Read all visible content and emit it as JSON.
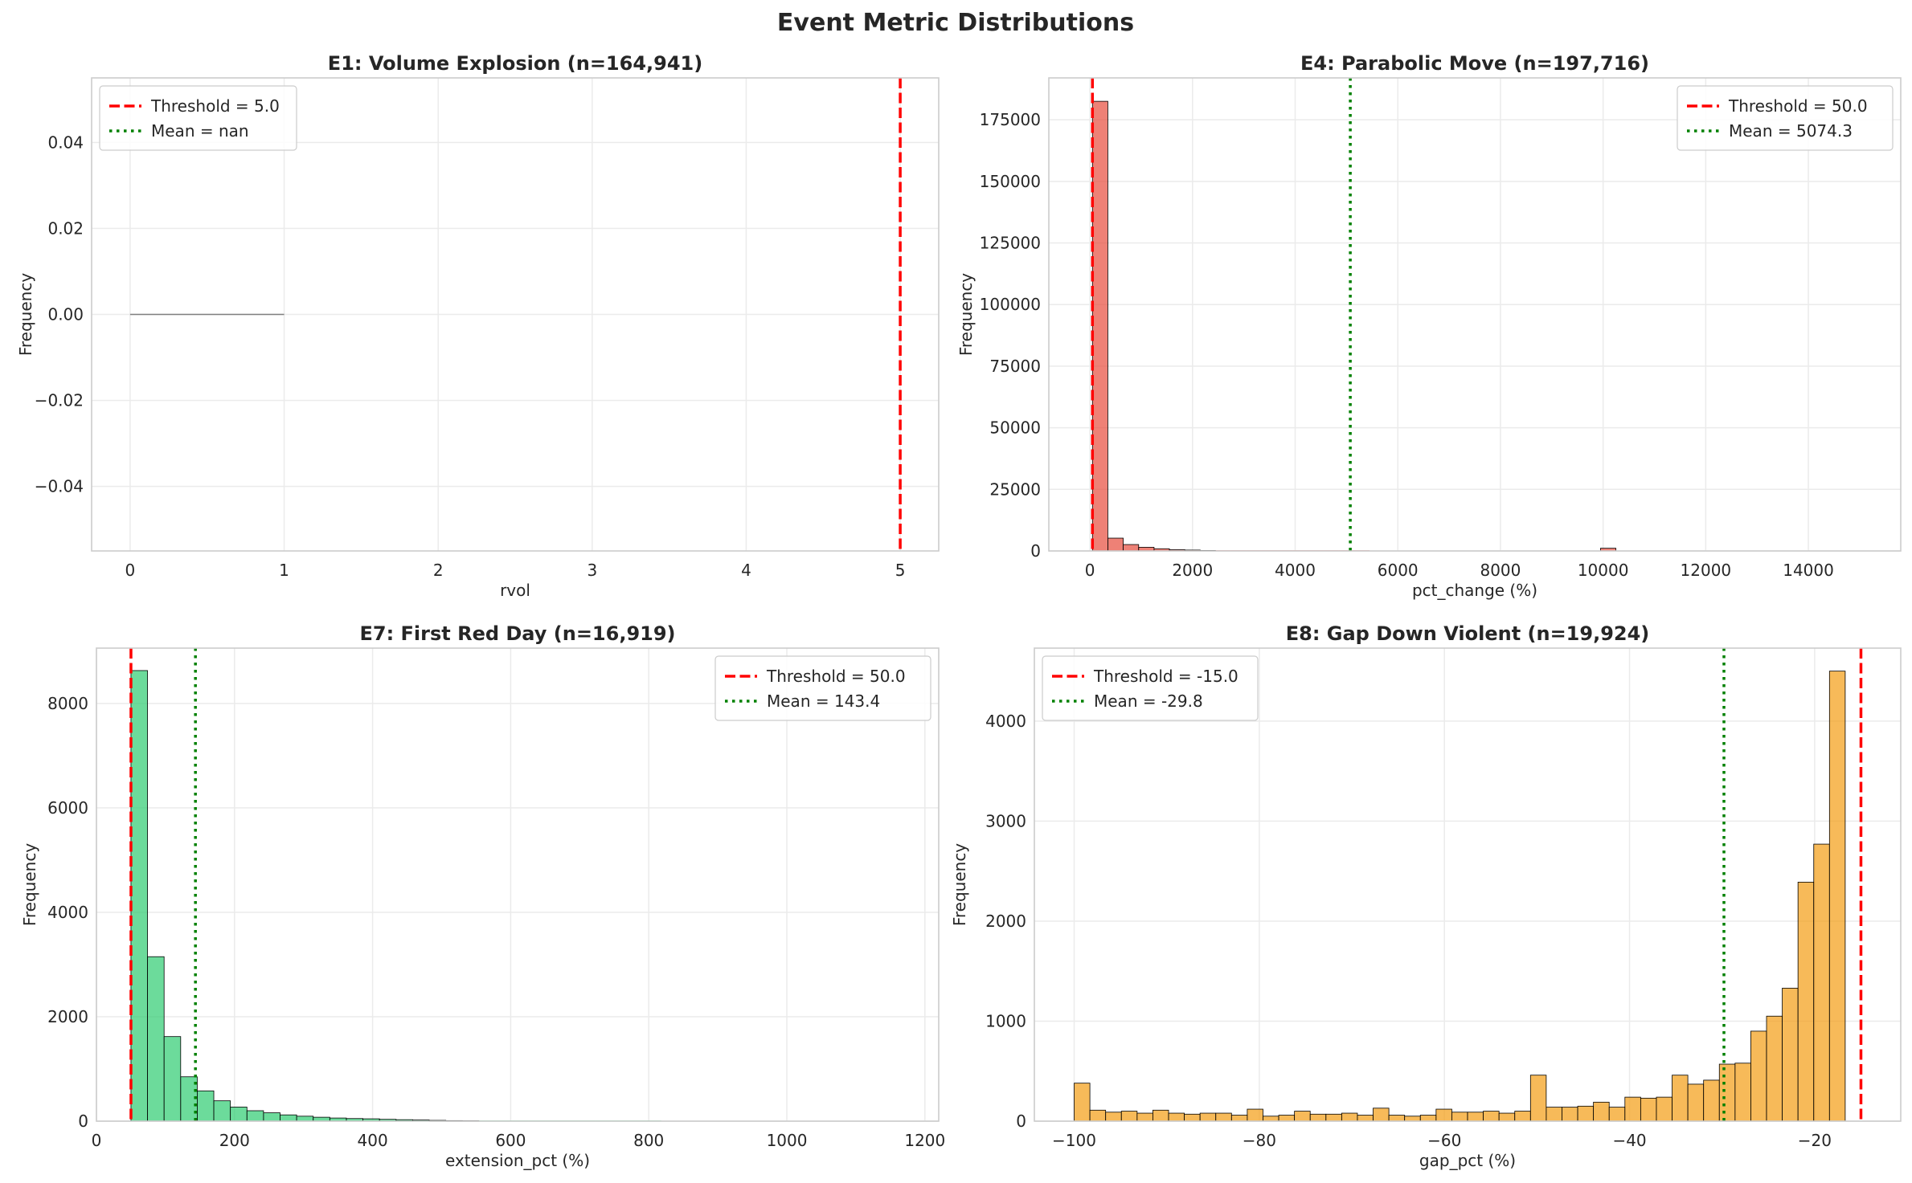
{
  "suptitle": "Event Metric Distributions",
  "chart_data": [
    {
      "id": "e1",
      "type": "bar",
      "title": "E1: Volume Explosion (n=164,941)",
      "xlabel": "rvol",
      "ylabel": "Frequency",
      "xlim": [
        -0.25,
        5.25
      ],
      "ylim": [
        -0.055,
        0.055
      ],
      "xticks": [
        0,
        1,
        2,
        3,
        4,
        5
      ],
      "xtick_labels": [
        "0",
        "1",
        "2",
        "3",
        "4",
        "5"
      ],
      "yticks": [
        -0.04,
        -0.02,
        0.0,
        0.02,
        0.04
      ],
      "ytick_labels": [
        "−0.04",
        "−0.02",
        "0.00",
        "0.02",
        "0.04"
      ],
      "bar_color": "#7f7f7f",
      "bins": [
        {
          "x0": 0,
          "x1": 1,
          "y": 0
        }
      ],
      "threshold": {
        "value": 5.0,
        "label": "Threshold = 5.0",
        "color": "#ff0000"
      },
      "mean": {
        "value": null,
        "label": "Mean = nan",
        "color": "#008000"
      },
      "legend_loc": "top-left",
      "grid": true
    },
    {
      "id": "e4",
      "type": "bar",
      "title": "E4: Parabolic Move (n=197,716)",
      "xlabel": "pct_change (%)",
      "ylabel": "Frequency",
      "xlim": [
        -800,
        15800
      ],
      "ylim": [
        0,
        192000
      ],
      "xticks": [
        0,
        2000,
        4000,
        6000,
        8000,
        10000,
        12000,
        14000
      ],
      "xtick_labels": [
        "0",
        "2000",
        "4000",
        "6000",
        "8000",
        "10000",
        "12000",
        "14000"
      ],
      "yticks": [
        0,
        25000,
        50000,
        75000,
        100000,
        125000,
        150000,
        175000
      ],
      "ytick_labels": [
        "0",
        "25000",
        "50000",
        "75000",
        "100000",
        "125000",
        "150000",
        "175000"
      ],
      "bar_color": "#e74c3c",
      "bins": [
        {
          "x0": 50,
          "x1": 350,
          "y": 182500
        },
        {
          "x0": 350,
          "x1": 650,
          "y": 5200
        },
        {
          "x0": 650,
          "x1": 950,
          "y": 2600
        },
        {
          "x0": 950,
          "x1": 1250,
          "y": 1500
        },
        {
          "x0": 1250,
          "x1": 1550,
          "y": 900
        },
        {
          "x0": 1550,
          "x1": 1850,
          "y": 500
        },
        {
          "x0": 1850,
          "x1": 2150,
          "y": 350
        },
        {
          "x0": 2150,
          "x1": 2450,
          "y": 200
        },
        {
          "x0": 2450,
          "x1": 2750,
          "y": 150
        },
        {
          "x0": 2750,
          "x1": 3050,
          "y": 120
        },
        {
          "x0": 3050,
          "x1": 3350,
          "y": 100
        },
        {
          "x0": 3350,
          "x1": 3650,
          "y": 80
        },
        {
          "x0": 3650,
          "x1": 3950,
          "y": 70
        },
        {
          "x0": 3950,
          "x1": 4250,
          "y": 60
        },
        {
          "x0": 4250,
          "x1": 4550,
          "y": 50
        },
        {
          "x0": 4550,
          "x1": 4850,
          "y": 40
        },
        {
          "x0": 4850,
          "x1": 5150,
          "y": 150
        },
        {
          "x0": 5150,
          "x1": 5450,
          "y": 40
        },
        {
          "x0": 9950,
          "x1": 10250,
          "y": 1100
        }
      ],
      "threshold": {
        "value": 50.0,
        "label": "Threshold = 50.0",
        "color": "#ff0000"
      },
      "mean": {
        "value": 5074.3,
        "label": "Mean = 5074.3",
        "color": "#008000"
      },
      "legend_loc": "top-right",
      "grid": true
    },
    {
      "id": "e7",
      "type": "bar",
      "title": "E7: First Red Day (n=16,919)",
      "xlabel": "extension_pct (%)",
      "ylabel": "Frequency",
      "xlim": [
        0,
        1220
      ],
      "ylim": [
        0,
        9060
      ],
      "xticks": [
        0,
        200,
        400,
        600,
        800,
        1000,
        1200
      ],
      "xtick_labels": [
        "0",
        "200",
        "400",
        "600",
        "800",
        "1000",
        "1200"
      ],
      "yticks": [
        0,
        2000,
        4000,
        6000,
        8000
      ],
      "ytick_labels": [
        "0",
        "2000",
        "4000",
        "6000",
        "8000"
      ],
      "bar_color": "#2ecc71",
      "bins": [
        {
          "x0": 50,
          "x1": 74,
          "y": 8630
        },
        {
          "x0": 74,
          "x1": 98,
          "y": 3150
        },
        {
          "x0": 98,
          "x1": 122,
          "y": 1620
        },
        {
          "x0": 122,
          "x1": 146,
          "y": 850
        },
        {
          "x0": 146,
          "x1": 170,
          "y": 580
        },
        {
          "x0": 170,
          "x1": 194,
          "y": 390
        },
        {
          "x0": 194,
          "x1": 218,
          "y": 270
        },
        {
          "x0": 218,
          "x1": 242,
          "y": 200
        },
        {
          "x0": 242,
          "x1": 266,
          "y": 160
        },
        {
          "x0": 266,
          "x1": 290,
          "y": 120
        },
        {
          "x0": 290,
          "x1": 314,
          "y": 95
        },
        {
          "x0": 314,
          "x1": 338,
          "y": 75
        },
        {
          "x0": 338,
          "x1": 362,
          "y": 60
        },
        {
          "x0": 362,
          "x1": 386,
          "y": 50
        },
        {
          "x0": 386,
          "x1": 410,
          "y": 45
        },
        {
          "x0": 410,
          "x1": 434,
          "y": 35
        },
        {
          "x0": 434,
          "x1": 458,
          "y": 28
        },
        {
          "x0": 458,
          "x1": 482,
          "y": 22
        },
        {
          "x0": 482,
          "x1": 506,
          "y": 15
        },
        {
          "x0": 506,
          "x1": 530,
          "y": 10
        },
        {
          "x0": 530,
          "x1": 554,
          "y": 8
        },
        {
          "x0": 554,
          "x1": 578,
          "y": 6
        },
        {
          "x0": 578,
          "x1": 602,
          "y": 5
        },
        {
          "x0": 602,
          "x1": 626,
          "y": 4
        },
        {
          "x0": 626,
          "x1": 650,
          "y": 3
        },
        {
          "x0": 650,
          "x1": 674,
          "y": 3
        },
        {
          "x0": 674,
          "x1": 698,
          "y": 2
        },
        {
          "x0": 698,
          "x1": 722,
          "y": 6
        },
        {
          "x0": 722,
          "x1": 746,
          "y": 2
        },
        {
          "x0": 746,
          "x1": 770,
          "y": 2
        },
        {
          "x0": 770,
          "x1": 794,
          "y": 4
        },
        {
          "x0": 794,
          "x1": 818,
          "y": 2
        }
      ],
      "threshold": {
        "value": 50.0,
        "label": "Threshold = 50.0",
        "color": "#ff0000"
      },
      "mean": {
        "value": 143.4,
        "label": "Mean = 143.4",
        "color": "#008000"
      },
      "legend_loc": "top-right",
      "grid": true
    },
    {
      "id": "e8",
      "type": "bar",
      "title": "E8: Gap Down Violent (n=19,924)",
      "xlabel": "gap_pct (%)",
      "ylabel": "Frequency",
      "xlim": [
        -104.3,
        -10.7
      ],
      "ylim": [
        0,
        4730
      ],
      "xticks": [
        -100,
        -80,
        -60,
        -40,
        -20
      ],
      "xtick_labels": [
        "−100",
        "−80",
        "−60",
        "−40",
        "−20"
      ],
      "yticks": [
        0,
        1000,
        2000,
        3000,
        4000
      ],
      "ytick_labels": [
        "0",
        "1000",
        "2000",
        "3000",
        "4000"
      ],
      "bar_color": "#f39c12",
      "bin_start": -100,
      "bin_width": 1.7,
      "values": [
        380,
        110,
        90,
        100,
        80,
        110,
        80,
        70,
        80,
        80,
        60,
        120,
        50,
        60,
        100,
        70,
        70,
        80,
        60,
        130,
        60,
        50,
        60,
        120,
        90,
        90,
        100,
        80,
        100,
        460,
        140,
        140,
        150,
        190,
        140,
        240,
        230,
        240,
        460,
        370,
        410,
        570,
        580,
        900,
        1050,
        1330,
        2390,
        2770,
        4500
      ],
      "threshold": {
        "value": -15.0,
        "label": "Threshold = -15.0",
        "color": "#ff0000"
      },
      "mean": {
        "value": -29.8,
        "label": "Mean = -29.8",
        "color": "#008000"
      },
      "legend_loc": "top-left",
      "grid": true
    }
  ]
}
